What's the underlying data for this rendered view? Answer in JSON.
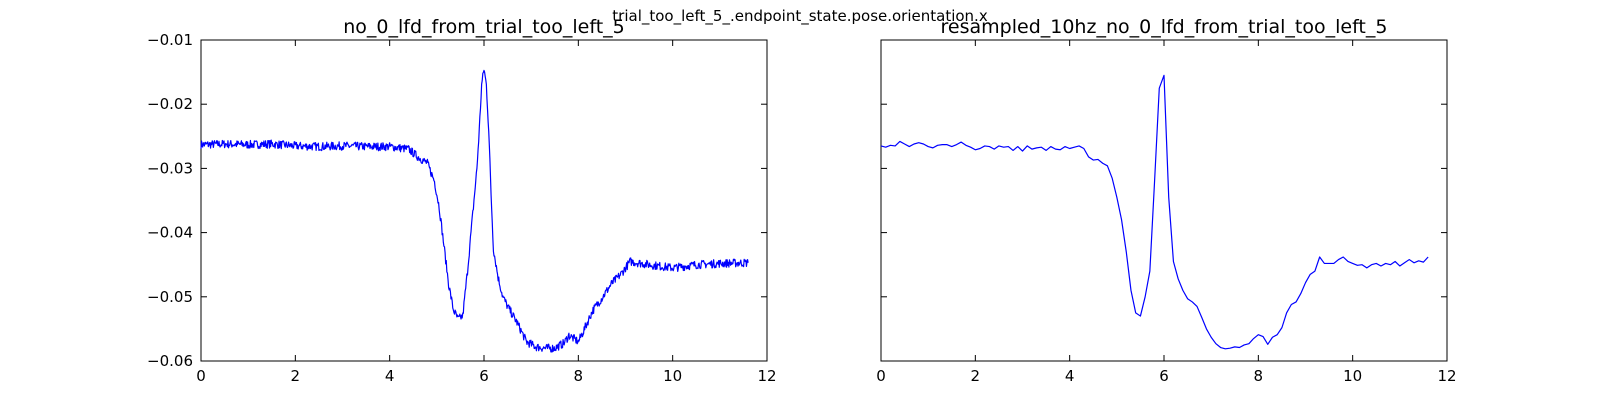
{
  "figure_title": "trial_too_left_5_.endpoint_state.pose.orientation.x",
  "colors": {
    "line": "#0000ff",
    "axes": "#000000",
    "background": "#ffffff"
  },
  "chart_data": [
    {
      "type": "line",
      "title": "no_0_lfd_from_trial_too_left_5",
      "xlabel": "",
      "ylabel": "",
      "xlim": [
        0,
        12
      ],
      "ylim": [
        -0.06,
        -0.01
      ],
      "xticks": [
        "0",
        "2",
        "4",
        "6",
        "8",
        "10",
        "12"
      ],
      "yticks": [
        "−0.01",
        "−0.02",
        "−0.03",
        "−0.04",
        "−0.05",
        "−0.06"
      ],
      "ytick_values": [
        -0.01,
        -0.02,
        -0.03,
        -0.04,
        -0.05,
        -0.06
      ],
      "xtick_values": [
        0,
        2,
        4,
        6,
        8,
        10,
        12
      ],
      "grid": false,
      "legend": "none",
      "noisy": true,
      "series": [
        {
          "x": [
            0,
            0.5,
            1.0,
            1.5,
            2.0,
            2.5,
            3.0,
            3.5,
            4.0,
            4.4,
            4.6,
            4.8,
            4.95,
            5.05,
            5.15,
            5.25,
            5.35,
            5.45,
            5.55,
            5.65,
            5.75,
            5.85,
            5.9,
            5.95,
            6.0,
            6.05,
            6.1,
            6.15,
            6.2,
            6.3,
            6.4,
            6.5,
            6.7,
            6.9,
            7.1,
            7.3,
            7.5,
            7.7,
            7.8,
            7.9,
            8.0,
            8.1,
            8.3,
            8.5,
            8.7,
            8.9,
            9.0,
            9.1,
            9.5,
            10.0,
            10.5,
            11.0,
            11.6
          ],
          "y": [
            -0.0263,
            -0.0262,
            -0.0263,
            -0.0262,
            -0.0265,
            -0.0266,
            -0.0265,
            -0.0266,
            -0.0266,
            -0.027,
            -0.0282,
            -0.0292,
            -0.032,
            -0.036,
            -0.042,
            -0.048,
            -0.052,
            -0.0535,
            -0.053,
            -0.046,
            -0.038,
            -0.03,
            -0.024,
            -0.017,
            -0.0145,
            -0.017,
            -0.024,
            -0.034,
            -0.0425,
            -0.047,
            -0.05,
            -0.0515,
            -0.054,
            -0.057,
            -0.0578,
            -0.058,
            -0.058,
            -0.0572,
            -0.056,
            -0.0565,
            -0.057,
            -0.0555,
            -0.0522,
            -0.0502,
            -0.048,
            -0.0465,
            -0.0455,
            -0.0445,
            -0.045,
            -0.0455,
            -0.045,
            -0.0448,
            -0.0447
          ]
        }
      ]
    },
    {
      "type": "line",
      "title": "resampled_10hz_no_0_lfd_from_trial_too_left_5",
      "xlabel": "",
      "ylabel": "",
      "xlim": [
        0,
        12
      ],
      "ylim": [
        -0.06,
        -0.01
      ],
      "xticks": [
        "0",
        "2",
        "4",
        "6",
        "8",
        "10",
        "12"
      ],
      "xtick_values": [
        0,
        2,
        4,
        6,
        8,
        10,
        12
      ],
      "ytick_values": [
        -0.01,
        -0.02,
        -0.03,
        -0.04,
        -0.05,
        -0.06
      ],
      "grid": false,
      "legend": "none",
      "noisy": false,
      "series": [
        {
          "x": [
            0,
            0.1,
            0.2,
            0.3,
            0.4,
            0.5,
            0.6,
            0.7,
            0.8,
            0.9,
            1.0,
            1.1,
            1.2,
            1.3,
            1.4,
            1.5,
            1.6,
            1.7,
            1.8,
            1.9,
            2.0,
            2.1,
            2.2,
            2.3,
            2.4,
            2.5,
            2.6,
            2.7,
            2.8,
            2.9,
            3.0,
            3.1,
            3.2,
            3.3,
            3.4,
            3.5,
            3.6,
            3.7,
            3.8,
            3.9,
            4.0,
            4.1,
            4.2,
            4.3,
            4.4,
            4.5,
            4.6,
            4.7,
            4.8,
            4.9,
            5.0,
            5.1,
            5.2,
            5.3,
            5.4,
            5.5,
            5.6,
            5.7,
            5.8,
            5.9,
            6.0,
            6.1,
            6.2,
            6.3,
            6.4,
            6.5,
            6.6,
            6.7,
            6.8,
            6.9,
            7.0,
            7.1,
            7.2,
            7.3,
            7.4,
            7.5,
            7.6,
            7.7,
            7.8,
            7.9,
            8.0,
            8.1,
            8.2,
            8.3,
            8.4,
            8.5,
            8.6,
            8.7,
            8.8,
            8.9,
            9.0,
            9.1,
            9.2,
            9.3,
            9.4,
            9.5,
            9.6,
            9.7,
            9.8,
            9.9,
            10.0,
            10.1,
            10.2,
            10.3,
            10.4,
            10.5,
            10.6,
            10.7,
            10.8,
            10.9,
            11.0,
            11.1,
            11.2,
            11.3,
            11.4,
            11.5,
            11.6
          ],
          "y": [
            -0.0265,
            -0.0267,
            -0.0264,
            -0.0265,
            -0.0258,
            -0.0262,
            -0.0266,
            -0.0262,
            -0.026,
            -0.0262,
            -0.0266,
            -0.0268,
            -0.0264,
            -0.0263,
            -0.0263,
            -0.0266,
            -0.0263,
            -0.0259,
            -0.0264,
            -0.0267,
            -0.0271,
            -0.0269,
            -0.0265,
            -0.0266,
            -0.027,
            -0.0265,
            -0.0267,
            -0.0266,
            -0.0272,
            -0.0266,
            -0.0273,
            -0.0265,
            -0.027,
            -0.0268,
            -0.0267,
            -0.0272,
            -0.0266,
            -0.027,
            -0.0271,
            -0.0266,
            -0.0269,
            -0.0267,
            -0.0265,
            -0.0269,
            -0.0282,
            -0.0287,
            -0.0286,
            -0.0292,
            -0.0296,
            -0.0315,
            -0.0345,
            -0.038,
            -0.043,
            -0.049,
            -0.0525,
            -0.053,
            -0.05,
            -0.046,
            -0.032,
            -0.0175,
            -0.0155,
            -0.0345,
            -0.0445,
            -0.0472,
            -0.049,
            -0.0503,
            -0.0508,
            -0.0515,
            -0.0532,
            -0.055,
            -0.0563,
            -0.0573,
            -0.0579,
            -0.0581,
            -0.058,
            -0.0578,
            -0.0579,
            -0.0575,
            -0.0573,
            -0.0565,
            -0.0559,
            -0.0562,
            -0.0574,
            -0.0563,
            -0.0559,
            -0.0548,
            -0.0525,
            -0.0512,
            -0.0508,
            -0.0495,
            -0.0478,
            -0.0465,
            -0.046,
            -0.0438,
            -0.0448,
            -0.0448,
            -0.0448,
            -0.0442,
            -0.0438,
            -0.0445,
            -0.0448,
            -0.0451,
            -0.045,
            -0.0455,
            -0.045,
            -0.0448,
            -0.0452,
            -0.0448,
            -0.045,
            -0.0445,
            -0.0452,
            -0.0447,
            -0.0442,
            -0.0447,
            -0.0444,
            -0.0446,
            -0.0438
          ]
        }
      ]
    }
  ]
}
